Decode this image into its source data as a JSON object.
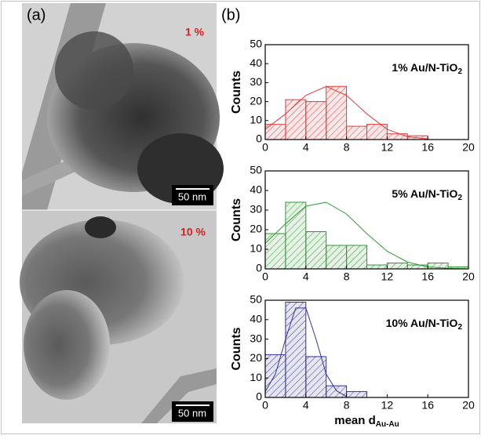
{
  "panel_a": {
    "label": "(a)",
    "images": [
      {
        "label": "1 %",
        "scale": "50 nm"
      },
      {
        "label": "10 %",
        "scale": "50 nm"
      }
    ]
  },
  "panel_b_label": "(b)",
  "chart_data": [
    {
      "type": "histogram",
      "title": "1% Au/N-TiO",
      "title_subscript": "2",
      "ylabel": "Counts",
      "color": "#e03a3a",
      "bins": [
        0,
        2,
        4,
        6,
        8,
        10,
        12,
        14,
        16
      ],
      "values": [
        8,
        21,
        20,
        28,
        7,
        8,
        3,
        2
      ],
      "fit": {
        "x": [
          0,
          2,
          4,
          6,
          8,
          10,
          12,
          14,
          16
        ],
        "y": [
          5.4,
          13.5,
          23.3,
          28,
          23.3,
          13.5,
          5.4,
          1.5,
          0.3
        ]
      },
      "xlim": [
        0,
        20
      ],
      "xticks": [
        0,
        4,
        8,
        12,
        16,
        20
      ],
      "ylim": [
        0,
        50
      ],
      "yticks": [
        0,
        10,
        20,
        30,
        40,
        50
      ]
    },
    {
      "type": "histogram",
      "title": "5% Au/N-TiO",
      "title_subscript": "2",
      "ylabel": "Counts",
      "color": "#2e9a2e",
      "bins": [
        0,
        2,
        4,
        6,
        8,
        10,
        12,
        14,
        16,
        18,
        20
      ],
      "values": [
        18,
        34,
        19,
        12,
        12,
        2,
        3,
        2,
        3,
        1
      ],
      "fit": {
        "x": [
          0,
          2,
          4,
          6,
          8,
          10,
          12,
          14,
          16,
          18,
          20
        ],
        "y": [
          13,
          23,
          32,
          34,
          28,
          18,
          9,
          3.5,
          1,
          0.3,
          0
        ]
      },
      "xlim": [
        0,
        20
      ],
      "xticks": [
        0,
        4,
        8,
        12,
        16,
        20
      ],
      "ylim": [
        0,
        50
      ],
      "yticks": [
        0,
        10,
        20,
        30,
        40,
        50
      ]
    },
    {
      "type": "histogram",
      "title": "10% Au/N-TiO",
      "title_subscript": "2",
      "ylabel": "Counts",
      "color": "#34349e",
      "bins": [
        0,
        2,
        4,
        6,
        8,
        10
      ],
      "values": [
        22,
        49,
        21,
        6,
        3
      ],
      "fit": {
        "x": [
          0,
          1,
          2,
          3,
          4,
          5,
          6,
          7,
          8
        ],
        "y": [
          3,
          12,
          30,
          46,
          46,
          30,
          12,
          3.5,
          0.5
        ]
      },
      "xlabel": "mean d",
      "xlabel_subscript": "Au-Au",
      "xlim": [
        0,
        20
      ],
      "xticks": [
        0,
        4,
        8,
        12,
        16,
        20
      ],
      "ylim": [
        0,
        50
      ],
      "yticks": [
        0,
        10,
        20,
        30,
        40,
        50
      ]
    }
  ]
}
